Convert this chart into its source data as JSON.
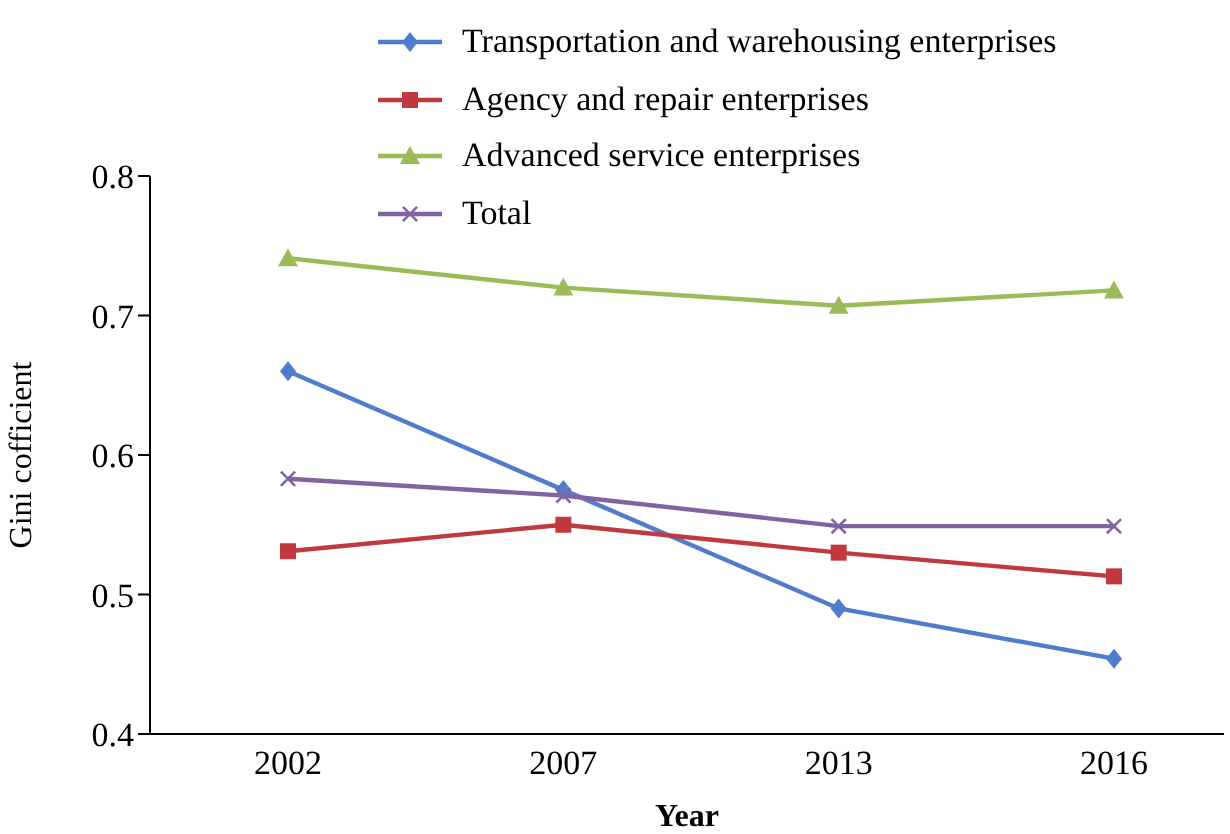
{
  "chart_data": {
    "type": "line",
    "xlabel": "Year",
    "ylabel": "Gini cofficient",
    "categories": [
      "2002",
      "2007",
      "2013",
      "2016"
    ],
    "series": [
      {
        "name": "Transportation and warehousing enterprises",
        "color": "#4f7ccc",
        "marker": "diamond",
        "values": [
          0.66,
          0.575,
          0.49,
          0.454
        ]
      },
      {
        "name": "Agency and repair enterprises",
        "color": "#c0393e",
        "marker": "square",
        "values": [
          0.531,
          0.55,
          0.53,
          0.513
        ]
      },
      {
        "name": "Advanced service enterprises",
        "color": "#9bbb59",
        "marker": "triangle",
        "values": [
          0.741,
          0.72,
          0.707,
          0.718
        ]
      },
      {
        "name": "Total",
        "color": "#8064a2",
        "marker": "cross",
        "values": [
          0.583,
          0.571,
          0.549,
          0.549
        ]
      }
    ],
    "ylim": [
      0.4,
      0.8
    ],
    "yticks": [
      0.4,
      0.5,
      0.6,
      0.7,
      0.8
    ],
    "grid": false,
    "legend": "top",
    "line_style": "solid"
  }
}
